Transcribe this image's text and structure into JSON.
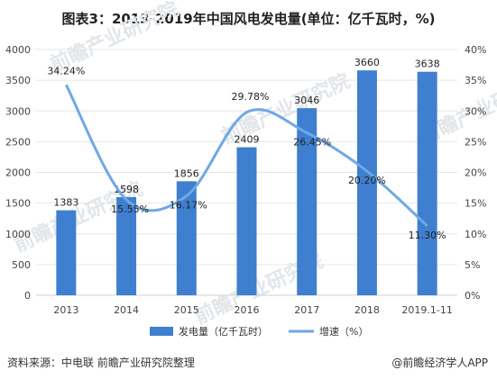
{
  "title": "图表3：2013-2019年中国风电发电量(单位：亿千瓦时，%)",
  "source": "资料来源：中电联 前瞻产业研究院整理",
  "credit": "@前瞻经济学人APP",
  "watermark": "前瞻产业研究院",
  "colors": {
    "bar": "#3f7fcf",
    "line": "#6fa8e6",
    "grid": "#e6e6e6"
  },
  "chart_data": {
    "type": "bar",
    "categories": [
      "2013",
      "2014",
      "2015",
      "2016",
      "2017",
      "2018",
      "2019.1-11"
    ],
    "series": [
      {
        "name": "发电量（亿千瓦时）",
        "type": "bar",
        "axis": "left",
        "values": [
          1383,
          1598,
          1856,
          2409,
          3046,
          3660,
          3638
        ],
        "labels": [
          "1383",
          "1598",
          "1856",
          "2409",
          "3046",
          "3660",
          "3638"
        ]
      },
      {
        "name": "增速（%）",
        "type": "line",
        "axis": "right",
        "smooth": true,
        "values": [
          34.24,
          15.55,
          16.17,
          29.78,
          26.45,
          20.2,
          11.3
        ],
        "labels": [
          "34.24%",
          "15.55%",
          "16.17%",
          "29.78%",
          "26.45%",
          "20.20%",
          "11.30%"
        ]
      }
    ],
    "y_left": {
      "min": 0,
      "max": 4000,
      "ticks": [
        "0",
        "500",
        "1000",
        "1500",
        "2000",
        "2500",
        "3000",
        "3500",
        "4000"
      ]
    },
    "y_right": {
      "min": 0,
      "max": 40,
      "ticks": [
        "0%",
        "5%",
        "10%",
        "15%",
        "20%",
        "25%",
        "30%",
        "35%",
        "40%"
      ]
    },
    "grid": true,
    "legend_position": "bottom"
  }
}
